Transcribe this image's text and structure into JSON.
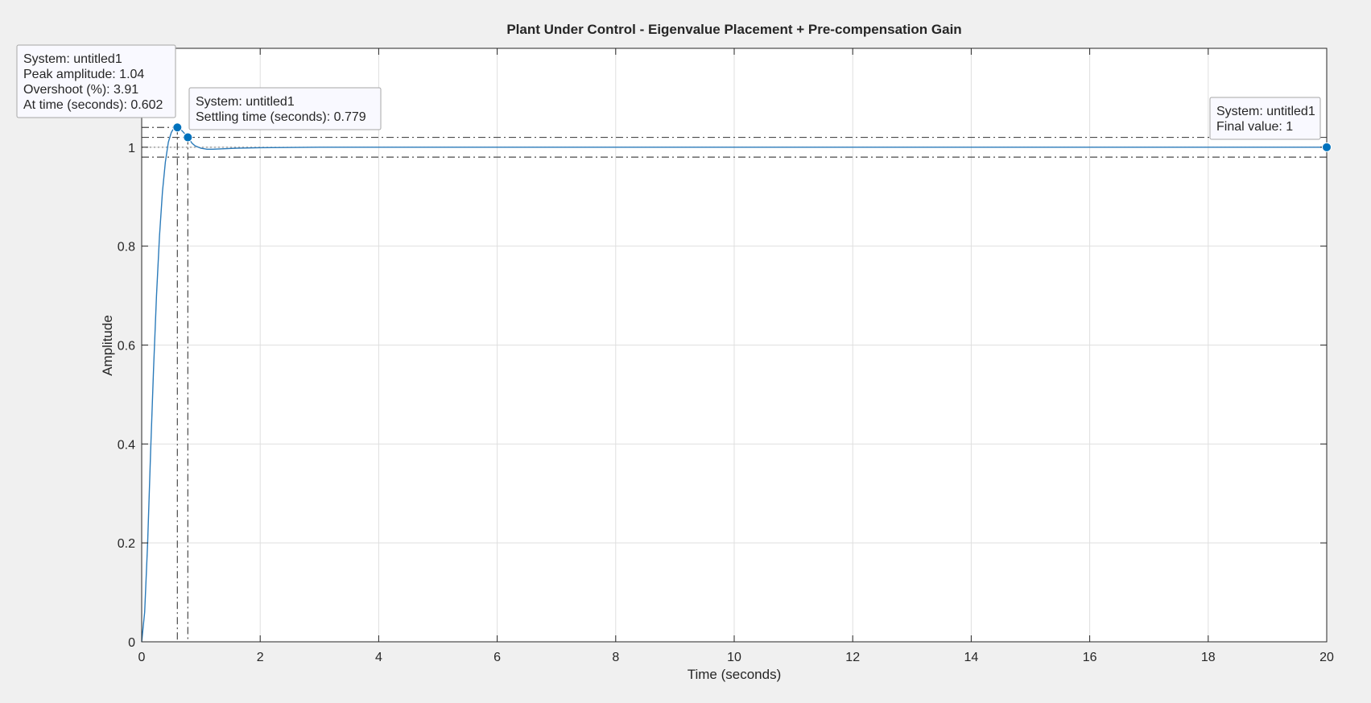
{
  "chart_data": {
    "type": "line",
    "title": "Plant Under Control - Eigenvalue Placement + Pre-compensation Gain",
    "xlabel": "Time (seconds)",
    "ylabel": "Amplitude",
    "xlim": [
      0,
      20
    ],
    "ylim": [
      0,
      1.2
    ],
    "x_ticks": [
      0,
      2,
      4,
      6,
      8,
      10,
      12,
      14,
      16,
      18,
      20
    ],
    "y_ticks": [
      0,
      0.2,
      0.4,
      0.6,
      0.8,
      1
    ],
    "grid": true,
    "series": [
      {
        "color": "#2b7bba",
        "x": [
          0,
          0.05,
          0.1,
          0.15,
          0.2,
          0.25,
          0.3,
          0.35,
          0.4,
          0.45,
          0.5,
          0.55,
          0.602,
          0.65,
          0.7,
          0.779,
          0.85,
          0.9,
          1.0,
          1.1,
          1.2,
          1.4,
          1.6,
          2.0,
          3.0,
          5.0,
          10.0,
          15.0,
          20.0
        ],
        "y": [
          0,
          0.06,
          0.2,
          0.38,
          0.55,
          0.7,
          0.82,
          0.91,
          0.97,
          1.01,
          1.03,
          1.04,
          1.04,
          1.037,
          1.031,
          1.02,
          1.008,
          1.003,
          0.998,
          0.996,
          0.996,
          0.997,
          0.998,
          0.999,
          1.0,
          1.0,
          1.0,
          1.0,
          1.0
        ]
      }
    ],
    "settling_band": [
      0.98,
      1.02
    ],
    "annotations": {
      "peak": {
        "x": 0.602,
        "y": 1.04,
        "lines": [
          "System: untitled1",
          "Peak amplitude: 1.04",
          "Overshoot (%): 3.91",
          "At time (seconds): 0.602"
        ]
      },
      "settling": {
        "x": 0.779,
        "y": 1.02,
        "lines": [
          "System: untitled1",
          "Settling time (seconds): 0.779"
        ]
      },
      "final": {
        "x": 20,
        "y": 1,
        "lines": [
          "System: untitled1",
          "Final value: 1"
        ]
      }
    }
  }
}
